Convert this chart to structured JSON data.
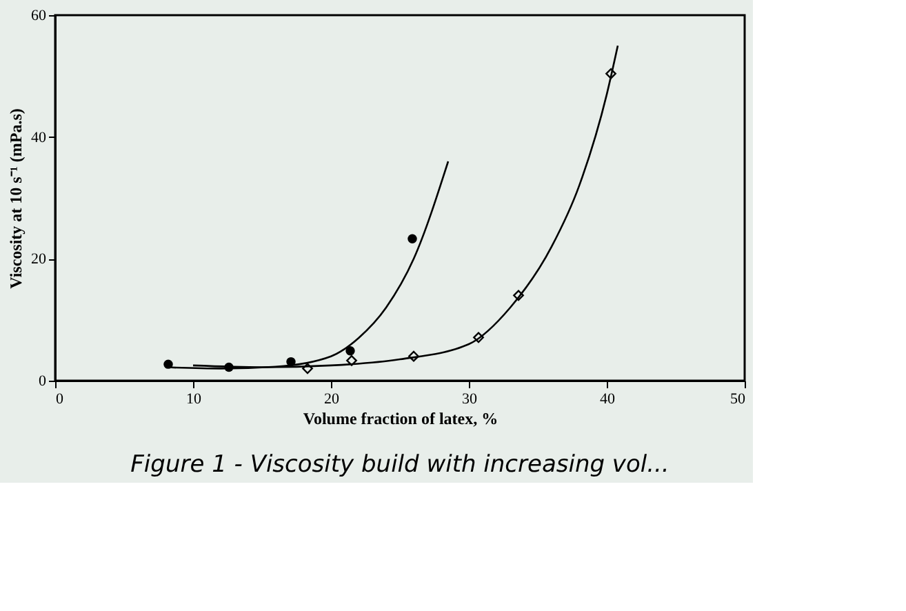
{
  "chart_data": {
    "type": "scatter",
    "xlabel": "Volume fraction of latex, %",
    "ylabel": "Viscosity at 10 s⁻¹ (mPa.s)",
    "xlim": [
      0,
      50
    ],
    "xticks": [
      0,
      10,
      20,
      30,
      40,
      50
    ],
    "ylim": [
      0,
      60
    ],
    "yticks": [
      0,
      20,
      40,
      60
    ],
    "grid": false,
    "annotations": [
      "Figure 1 - Viscosity build with increasing vol..."
    ],
    "series": [
      {
        "color": "#000000",
        "marker": "circle",
        "x": [
          8.2,
          12.6,
          17.1,
          21.4,
          25.9
        ],
        "values": [
          2.7,
          2.2,
          3.1,
          4.9,
          23.3
        ]
      },
      {
        "color": "#000000",
        "marker": "diamond",
        "x": [
          18.3,
          21.5,
          26.0,
          30.7,
          33.6,
          40.3
        ],
        "values": [
          2.0,
          3.3,
          4.0,
          7.1,
          14.0,
          50.4
        ]
      },
      {
        "type": "line",
        "color": "#000000",
        "x": [
          8,
          12,
          16,
          20,
          22,
          24,
          26,
          28.5
        ],
        "values": [
          2.2,
          2.0,
          2.3,
          4,
          7,
          12,
          20,
          36
        ]
      },
      {
        "type": "line",
        "color": "#000000",
        "x": [
          10,
          15,
          20,
          25,
          30,
          33,
          36,
          38,
          40,
          40.8
        ],
        "values": [
          2.5,
          2.2,
          2.5,
          3.5,
          6,
          12,
          22,
          32,
          47,
          55
        ]
      }
    ]
  }
}
